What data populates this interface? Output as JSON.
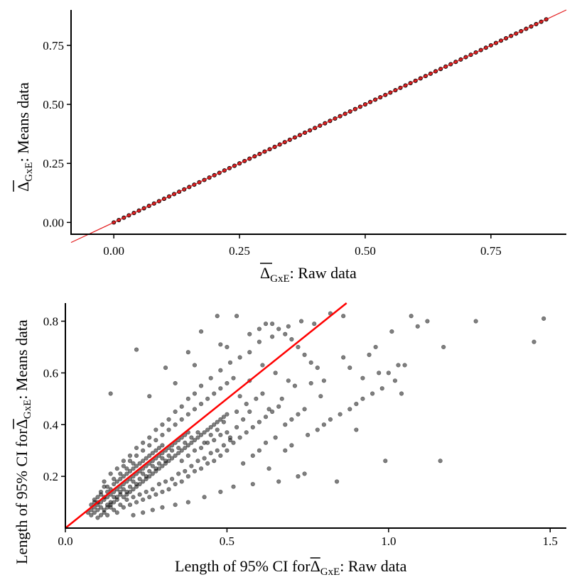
{
  "chart_data": [
    {
      "type": "scatter",
      "title": "",
      "xlabel": {
        "symbol": "Δ",
        "subscript": "GxE",
        "suffix": ": Raw data"
      },
      "ylabel": {
        "symbol": "Δ",
        "subscript": "GxE",
        "suffix": ": Means data"
      },
      "xlim": [
        -0.085,
        0.9
      ],
      "ylim": [
        -0.05,
        0.9
      ],
      "x_ticks": [
        0.0,
        0.25,
        0.5,
        0.75
      ],
      "x_tick_labels": [
        "0.00",
        "0.25",
        "0.50",
        "0.75"
      ],
      "y_ticks": [
        0.0,
        0.25,
        0.5,
        0.75
      ],
      "y_tick_labels": [
        "0.00",
        "0.25",
        "0.50",
        "0.75"
      ],
      "grid": false,
      "point_fill": "#d62728",
      "point_stroke": "#000000",
      "point_range": [
        0.0,
        0.86
      ],
      "point_count": 87,
      "reference_line": {
        "slope": 1,
        "intercept": 0,
        "color": "#e31a1c"
      }
    },
    {
      "type": "scatter",
      "title": "",
      "xlabel": {
        "prefix": "Length of 95% CI for",
        "symbol": "Δ",
        "subscript": "GxE",
        "suffix": ": Raw data"
      },
      "ylabel": {
        "prefix": "Length of 95% CI for",
        "symbol": "Δ",
        "subscript": "GxE",
        "suffix": ": Means data"
      },
      "xlim": [
        0.0,
        1.55
      ],
      "ylim": [
        0.0,
        0.87
      ],
      "x_ticks": [
        0.0,
        0.5,
        1.0,
        1.5
      ],
      "x_tick_labels": [
        "0.0",
        "0.5",
        "1.0",
        "1.5"
      ],
      "y_ticks": [
        0.2,
        0.4,
        0.6,
        0.8
      ],
      "y_tick_labels": [
        "0.2",
        "0.4",
        "0.6",
        "0.8"
      ],
      "grid": false,
      "point_color": "#000000",
      "point_opacity": 0.5,
      "reference_line": {
        "slope": 1,
        "intercept": 0,
        "color": "#ff0000"
      },
      "points": [
        [
          0.08,
          0.05
        ],
        [
          0.09,
          0.06
        ],
        [
          0.1,
          0.07
        ],
        [
          0.08,
          0.09
        ],
        [
          0.11,
          0.08
        ],
        [
          0.12,
          0.06
        ],
        [
          0.1,
          0.1
        ],
        [
          0.13,
          0.09
        ],
        [
          0.09,
          0.11
        ],
        [
          0.12,
          0.12
        ],
        [
          0.14,
          0.1
        ],
        [
          0.11,
          0.13
        ],
        [
          0.15,
          0.12
        ],
        [
          0.13,
          0.14
        ],
        [
          0.16,
          0.11
        ],
        [
          0.14,
          0.15
        ],
        [
          0.17,
          0.13
        ],
        [
          0.12,
          0.16
        ],
        [
          0.18,
          0.15
        ],
        [
          0.15,
          0.17
        ],
        [
          0.19,
          0.14
        ],
        [
          0.16,
          0.18
        ],
        [
          0.2,
          0.16
        ],
        [
          0.17,
          0.19
        ],
        [
          0.21,
          0.18
        ],
        [
          0.18,
          0.2
        ],
        [
          0.22,
          0.17
        ],
        [
          0.19,
          0.21
        ],
        [
          0.23,
          0.19
        ],
        [
          0.2,
          0.22
        ],
        [
          0.24,
          0.21
        ],
        [
          0.21,
          0.23
        ],
        [
          0.25,
          0.2
        ],
        [
          0.22,
          0.24
        ],
        [
          0.26,
          0.22
        ],
        [
          0.23,
          0.25
        ],
        [
          0.27,
          0.24
        ],
        [
          0.24,
          0.26
        ],
        [
          0.28,
          0.23
        ],
        [
          0.25,
          0.27
        ],
        [
          0.29,
          0.25
        ],
        [
          0.26,
          0.28
        ],
        [
          0.3,
          0.27
        ],
        [
          0.27,
          0.29
        ],
        [
          0.31,
          0.26
        ],
        [
          0.28,
          0.3
        ],
        [
          0.32,
          0.28
        ],
        [
          0.29,
          0.31
        ],
        [
          0.33,
          0.3
        ],
        [
          0.3,
          0.32
        ],
        [
          0.1,
          0.04
        ],
        [
          0.13,
          0.05
        ],
        [
          0.15,
          0.07
        ],
        [
          0.18,
          0.08
        ],
        [
          0.2,
          0.09
        ],
        [
          0.22,
          0.1
        ],
        [
          0.24,
          0.11
        ],
        [
          0.26,
          0.12
        ],
        [
          0.28,
          0.13
        ],
        [
          0.3,
          0.14
        ],
        [
          0.32,
          0.15
        ],
        [
          0.34,
          0.17
        ],
        [
          0.36,
          0.18
        ],
        [
          0.38,
          0.2
        ],
        [
          0.4,
          0.22
        ],
        [
          0.42,
          0.23
        ],
        [
          0.44,
          0.25
        ],
        [
          0.46,
          0.26
        ],
        [
          0.48,
          0.28
        ],
        [
          0.5,
          0.3
        ],
        [
          0.18,
          0.24
        ],
        [
          0.2,
          0.26
        ],
        [
          0.22,
          0.28
        ],
        [
          0.24,
          0.3
        ],
        [
          0.26,
          0.32
        ],
        [
          0.28,
          0.34
        ],
        [
          0.3,
          0.36
        ],
        [
          0.32,
          0.38
        ],
        [
          0.34,
          0.4
        ],
        [
          0.36,
          0.42
        ],
        [
          0.38,
          0.44
        ],
        [
          0.4,
          0.46
        ],
        [
          0.42,
          0.48
        ],
        [
          0.44,
          0.5
        ],
        [
          0.46,
          0.52
        ],
        [
          0.48,
          0.54
        ],
        [
          0.5,
          0.56
        ],
        [
          0.52,
          0.58
        ],
        [
          0.35,
          0.31
        ],
        [
          0.37,
          0.33
        ],
        [
          0.39,
          0.35
        ],
        [
          0.41,
          0.37
        ],
        [
          0.43,
          0.33
        ],
        [
          0.45,
          0.36
        ],
        [
          0.47,
          0.38
        ],
        [
          0.49,
          0.41
        ],
        [
          0.51,
          0.35
        ],
        [
          0.53,
          0.39
        ],
        [
          0.55,
          0.42
        ],
        [
          0.57,
          0.45
        ],
        [
          0.36,
          0.26
        ],
        [
          0.38,
          0.28
        ],
        [
          0.4,
          0.3
        ],
        [
          0.42,
          0.31
        ],
        [
          0.44,
          0.33
        ],
        [
          0.46,
          0.34
        ],
        [
          0.48,
          0.36
        ],
        [
          0.5,
          0.37
        ],
        [
          0.52,
          0.33
        ],
        [
          0.54,
          0.35
        ],
        [
          0.56,
          0.37
        ],
        [
          0.58,
          0.39
        ],
        [
          0.6,
          0.41
        ],
        [
          0.62,
          0.43
        ],
        [
          0.64,
          0.45
        ],
        [
          0.66,
          0.47
        ],
        [
          0.68,
          0.4
        ],
        [
          0.7,
          0.42
        ],
        [
          0.72,
          0.44
        ],
        [
          0.74,
          0.46
        ],
        [
          0.55,
          0.25
        ],
        [
          0.58,
          0.28
        ],
        [
          0.6,
          0.3
        ],
        [
          0.62,
          0.33
        ],
        [
          0.65,
          0.35
        ],
        [
          0.68,
          0.3
        ],
        [
          0.7,
          0.32
        ],
        [
          0.72,
          0.2
        ],
        [
          0.75,
          0.36
        ],
        [
          0.78,
          0.38
        ],
        [
          0.8,
          0.4
        ],
        [
          0.82,
          0.42
        ],
        [
          0.85,
          0.44
        ],
        [
          0.88,
          0.46
        ],
        [
          0.9,
          0.48
        ],
        [
          0.92,
          0.5
        ],
        [
          0.95,
          0.52
        ],
        [
          0.98,
          0.54
        ],
        [
          1.0,
          0.6
        ],
        [
          1.02,
          0.57
        ],
        [
          0.14,
          0.52
        ],
        [
          0.22,
          0.69
        ],
        [
          0.26,
          0.51
        ],
        [
          0.31,
          0.62
        ],
        [
          0.34,
          0.56
        ],
        [
          0.38,
          0.68
        ],
        [
          0.4,
          0.63
        ],
        [
          0.42,
          0.76
        ],
        [
          0.47,
          0.82
        ],
        [
          0.48,
          0.71
        ],
        [
          0.5,
          0.7
        ],
        [
          0.53,
          0.82
        ],
        [
          0.57,
          0.75
        ],
        [
          0.6,
          0.77
        ],
        [
          0.62,
          0.79
        ],
        [
          0.64,
          0.79
        ],
        [
          0.66,
          0.77
        ],
        [
          0.68,
          0.75
        ],
        [
          0.7,
          0.73
        ],
        [
          0.72,
          0.7
        ],
        [
          0.74,
          0.67
        ],
        [
          0.76,
          0.64
        ],
        [
          0.78,
          0.62
        ],
        [
          0.82,
          0.83
        ],
        [
          0.86,
          0.82
        ],
        [
          0.92,
          0.58
        ],
        [
          0.96,
          0.7
        ],
        [
          1.01,
          0.76
        ],
        [
          1.05,
          0.63
        ],
        [
          1.07,
          0.82
        ],
        [
          1.09,
          0.78
        ],
        [
          1.12,
          0.8
        ],
        [
          1.17,
          0.7
        ],
        [
          1.27,
          0.8
        ],
        [
          1.45,
          0.72
        ],
        [
          1.48,
          0.81
        ],
        [
          0.99,
          0.26
        ],
        [
          1.16,
          0.26
        ],
        [
          1.04,
          0.52
        ],
        [
          0.9,
          0.38
        ],
        [
          0.84,
          0.18
        ],
        [
          0.74,
          0.21
        ],
        [
          0.66,
          0.18
        ],
        [
          0.63,
          0.23
        ],
        [
          0.58,
          0.17
        ],
        [
          0.52,
          0.16
        ],
        [
          0.48,
          0.14
        ],
        [
          0.43,
          0.12
        ],
        [
          0.38,
          0.1
        ],
        [
          0.34,
          0.09
        ],
        [
          0.3,
          0.08
        ],
        [
          0.27,
          0.07
        ],
        [
          0.24,
          0.06
        ],
        [
          0.21,
          0.05
        ],
        [
          0.16,
          0.06
        ],
        [
          0.14,
          0.08
        ],
        [
          0.17,
          0.09
        ],
        [
          0.19,
          0.11
        ],
        [
          0.21,
          0.12
        ],
        [
          0.23,
          0.13
        ],
        [
          0.25,
          0.14
        ],
        [
          0.27,
          0.15
        ],
        [
          0.29,
          0.17
        ],
        [
          0.31,
          0.18
        ],
        [
          0.33,
          0.19
        ],
        [
          0.35,
          0.21
        ],
        [
          0.37,
          0.22
        ],
        [
          0.39,
          0.24
        ],
        [
          0.41,
          0.26
        ],
        [
          0.43,
          0.27
        ],
        [
          0.45,
          0.29
        ],
        [
          0.47,
          0.3
        ],
        [
          0.49,
          0.32
        ],
        [
          0.51,
          0.34
        ],
        [
          0.12,
          0.18
        ],
        [
          0.14,
          0.21
        ],
        [
          0.16,
          0.23
        ],
        [
          0.18,
          0.26
        ],
        [
          0.2,
          0.28
        ],
        [
          0.22,
          0.31
        ],
        [
          0.24,
          0.33
        ],
        [
          0.26,
          0.35
        ],
        [
          0.28,
          0.38
        ],
        [
          0.3,
          0.4
        ],
        [
          0.32,
          0.42
        ],
        [
          0.34,
          0.45
        ],
        [
          0.36,
          0.47
        ],
        [
          0.38,
          0.5
        ],
        [
          0.4,
          0.52
        ],
        [
          0.42,
          0.55
        ],
        [
          0.45,
          0.58
        ],
        [
          0.48,
          0.61
        ],
        [
          0.51,
          0.64
        ],
        [
          0.54,
          0.66
        ],
        [
          0.57,
          0.68
        ],
        [
          0.6,
          0.72
        ],
        [
          0.64,
          0.74
        ],
        [
          0.69,
          0.78
        ],
        [
          0.73,
          0.8
        ],
        [
          0.77,
          0.79
        ],
        [
          0.09,
          0.08
        ],
        [
          0.1,
          0.09
        ],
        [
          0.11,
          0.1
        ],
        [
          0.12,
          0.11
        ],
        [
          0.13,
          0.12
        ],
        [
          0.14,
          0.13
        ],
        [
          0.15,
          0.14
        ],
        [
          0.16,
          0.15
        ],
        [
          0.17,
          0.16
        ],
        [
          0.18,
          0.17
        ],
        [
          0.19,
          0.18
        ],
        [
          0.2,
          0.19
        ],
        [
          0.21,
          0.2
        ],
        [
          0.22,
          0.21
        ],
        [
          0.23,
          0.22
        ],
        [
          0.24,
          0.23
        ],
        [
          0.25,
          0.24
        ],
        [
          0.26,
          0.25
        ],
        [
          0.27,
          0.26
        ],
        [
          0.28,
          0.27
        ],
        [
          0.29,
          0.28
        ],
        [
          0.3,
          0.29
        ],
        [
          0.31,
          0.3
        ],
        [
          0.32,
          0.31
        ],
        [
          0.33,
          0.32
        ],
        [
          0.34,
          0.33
        ],
        [
          0.35,
          0.34
        ],
        [
          0.36,
          0.35
        ],
        [
          0.37,
          0.36
        ],
        [
          0.38,
          0.37
        ],
        [
          0.07,
          0.06
        ],
        [
          0.08,
          0.07
        ],
        [
          0.09,
          0.1
        ],
        [
          0.1,
          0.12
        ],
        [
          0.11,
          0.14
        ],
        [
          0.13,
          0.16
        ],
        [
          0.15,
          0.19
        ],
        [
          0.17,
          0.21
        ],
        [
          0.19,
          0.23
        ],
        [
          0.21,
          0.25
        ],
        [
          0.11,
          0.05
        ],
        [
          0.12,
          0.07
        ],
        [
          0.13,
          0.08
        ],
        [
          0.14,
          0.09
        ],
        [
          0.15,
          0.1
        ],
        [
          0.16,
          0.12
        ],
        [
          0.17,
          0.14
        ],
        [
          0.18,
          0.12
        ],
        [
          0.19,
          0.13
        ],
        [
          0.2,
          0.14
        ],
        [
          0.21,
          0.15
        ],
        [
          0.22,
          0.16
        ],
        [
          0.23,
          0.17
        ],
        [
          0.24,
          0.18
        ],
        [
          0.25,
          0.19
        ],
        [
          0.26,
          0.2
        ],
        [
          0.27,
          0.21
        ],
        [
          0.28,
          0.22
        ],
        [
          0.29,
          0.23
        ],
        [
          0.3,
          0.24
        ],
        [
          0.31,
          0.25
        ],
        [
          0.32,
          0.26
        ],
        [
          0.33,
          0.27
        ],
        [
          0.34,
          0.28
        ],
        [
          0.35,
          0.29
        ],
        [
          0.36,
          0.3
        ],
        [
          0.37,
          0.31
        ],
        [
          0.38,
          0.32
        ],
        [
          0.39,
          0.33
        ],
        [
          0.4,
          0.34
        ],
        [
          0.41,
          0.35
        ],
        [
          0.42,
          0.36
        ],
        [
          0.43,
          0.37
        ],
        [
          0.44,
          0.38
        ],
        [
          0.45,
          0.39
        ],
        [
          0.46,
          0.4
        ],
        [
          0.47,
          0.41
        ],
        [
          0.48,
          0.42
        ],
        [
          0.49,
          0.43
        ],
        [
          0.5,
          0.44
        ],
        [
          0.53,
          0.45
        ],
        [
          0.56,
          0.48
        ],
        [
          0.59,
          0.5
        ],
        [
          0.61,
          0.52
        ],
        [
          0.63,
          0.46
        ],
        [
          0.67,
          0.5
        ],
        [
          0.71,
          0.55
        ],
        [
          0.76,
          0.56
        ],
        [
          0.8,
          0.57
        ],
        [
          0.86,
          0.66
        ],
        [
          0.88,
          0.62
        ],
        [
          0.94,
          0.67
        ],
        [
          0.97,
          0.6
        ],
        [
          1.03,
          0.63
        ],
        [
          0.79,
          0.51
        ],
        [
          0.69,
          0.57
        ],
        [
          0.65,
          0.6
        ],
        [
          0.61,
          0.63
        ],
        [
          0.57,
          0.57
        ],
        [
          0.54,
          0.51
        ]
      ]
    }
  ]
}
